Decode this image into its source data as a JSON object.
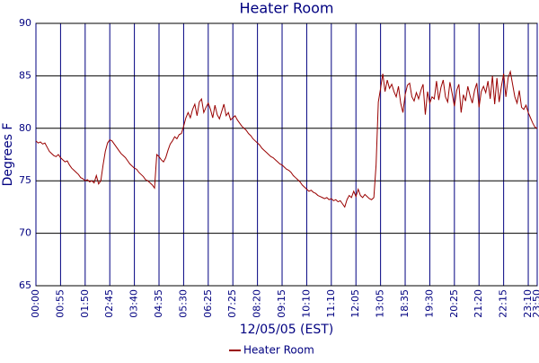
{
  "chart_data": {
    "type": "line",
    "title": "Heater Room",
    "xlabel": "12/05/05 (EST)",
    "ylabel": "Degrees F",
    "series": [
      {
        "name": "Heater Room",
        "color": "#990000",
        "values": [
          78.8,
          78.6,
          78.7,
          78.5,
          78.6,
          78.2,
          77.8,
          77.6,
          77.4,
          77.3,
          77.5,
          77.2,
          77.0,
          76.8,
          76.9,
          76.5,
          76.2,
          76.0,
          75.8,
          75.6,
          75.3,
          75.2,
          75.0,
          75.1,
          74.9,
          75.0,
          74.8,
          75.5,
          74.7,
          75.0,
          76.5,
          77.8,
          78.6,
          78.9,
          78.8,
          78.5,
          78.2,
          77.9,
          77.6,
          77.4,
          77.2,
          76.9,
          76.6,
          76.4,
          76.2,
          76.1,
          75.8,
          75.6,
          75.4,
          75.1,
          75.0,
          74.8,
          74.6,
          74.3,
          77.5,
          77.3,
          77.0,
          76.8,
          77.2,
          77.9,
          78.5,
          78.8,
          79.2,
          79.0,
          79.4,
          79.5,
          80.2,
          81.0,
          81.5,
          81.0,
          81.8,
          82.3,
          81.2,
          82.5,
          82.8,
          81.5,
          82.0,
          82.4,
          81.8,
          81.0,
          82.2,
          81.3,
          80.9,
          81.6,
          82.3,
          81.2,
          81.5,
          80.8,
          81.0,
          81.2,
          80.8,
          80.5,
          80.2,
          80.0,
          79.8,
          79.5,
          79.3,
          79.0,
          78.8,
          78.6,
          78.4,
          78.1,
          77.9,
          77.7,
          77.5,
          77.3,
          77.2,
          77.0,
          76.8,
          76.6,
          76.5,
          76.3,
          76.1,
          76.0,
          75.8,
          75.5,
          75.3,
          75.1,
          74.9,
          74.6,
          74.4,
          74.2,
          74.0,
          74.1,
          73.9,
          73.8,
          73.6,
          73.5,
          73.4,
          73.3,
          73.4,
          73.2,
          73.3,
          73.1,
          73.2,
          73.0,
          73.1,
          72.8,
          72.5,
          73.2,
          73.6,
          73.4,
          74.0,
          73.5,
          74.2,
          73.6,
          73.4,
          73.7,
          73.5,
          73.3,
          73.2,
          73.4,
          76.5,
          82.5,
          83.8,
          85.2,
          83.5,
          84.6,
          83.8,
          84.2,
          83.5,
          83.0,
          84.0,
          82.4,
          81.5,
          83.2,
          84.1,
          84.3,
          83.0,
          82.6,
          83.4,
          82.8,
          83.6,
          84.2,
          81.3,
          83.5,
          82.4,
          83.0,
          82.8,
          84.5,
          82.7,
          83.9,
          84.6,
          83.0,
          82.5,
          84.4,
          83.3,
          82.1,
          83.6,
          84.2,
          81.5,
          83.2,
          82.6,
          84.0,
          83.1,
          82.4,
          83.6,
          84.3,
          82.0,
          83.5,
          84.0,
          83.4,
          84.5,
          82.8,
          85.0,
          82.3,
          84.8,
          82.5,
          84.0,
          85.2,
          83.0,
          84.8,
          85.4,
          84.2,
          83.0,
          82.4,
          83.6,
          82.0,
          81.8,
          82.2,
          81.5,
          81.0,
          80.5,
          80.1,
          80.0
        ]
      }
    ],
    "xlim": [
      0,
      224
    ],
    "xticks": [
      {
        "value": 0,
        "label": "00:00"
      },
      {
        "value": 11,
        "label": "00:55"
      },
      {
        "value": 22,
        "label": "01:50"
      },
      {
        "value": 33,
        "label": "02:45"
      },
      {
        "value": 44,
        "label": "03:40"
      },
      {
        "value": 55,
        "label": "04:35"
      },
      {
        "value": 66,
        "label": "05:30"
      },
      {
        "value": 77,
        "label": "06:25"
      },
      {
        "value": 88,
        "label": "07:25"
      },
      {
        "value": 99,
        "label": "08:20"
      },
      {
        "value": 110,
        "label": "09:15"
      },
      {
        "value": 121,
        "label": "10:10"
      },
      {
        "value": 132,
        "label": "11:10"
      },
      {
        "value": 143,
        "label": "12:05"
      },
      {
        "value": 154,
        "label": "13:05"
      },
      {
        "value": 165,
        "label": "18:35"
      },
      {
        "value": 176,
        "label": "19:30"
      },
      {
        "value": 187,
        "label": "20:25"
      },
      {
        "value": 198,
        "label": "21:20"
      },
      {
        "value": 209,
        "label": "22:15"
      },
      {
        "value": 220,
        "label": "23:10"
      },
      {
        "value": 224,
        "label": "23:50"
      }
    ],
    "ylim": [
      65,
      90
    ],
    "yticks": [
      65,
      70,
      75,
      80,
      85,
      90
    ],
    "grid": true,
    "legend": "bottom"
  }
}
